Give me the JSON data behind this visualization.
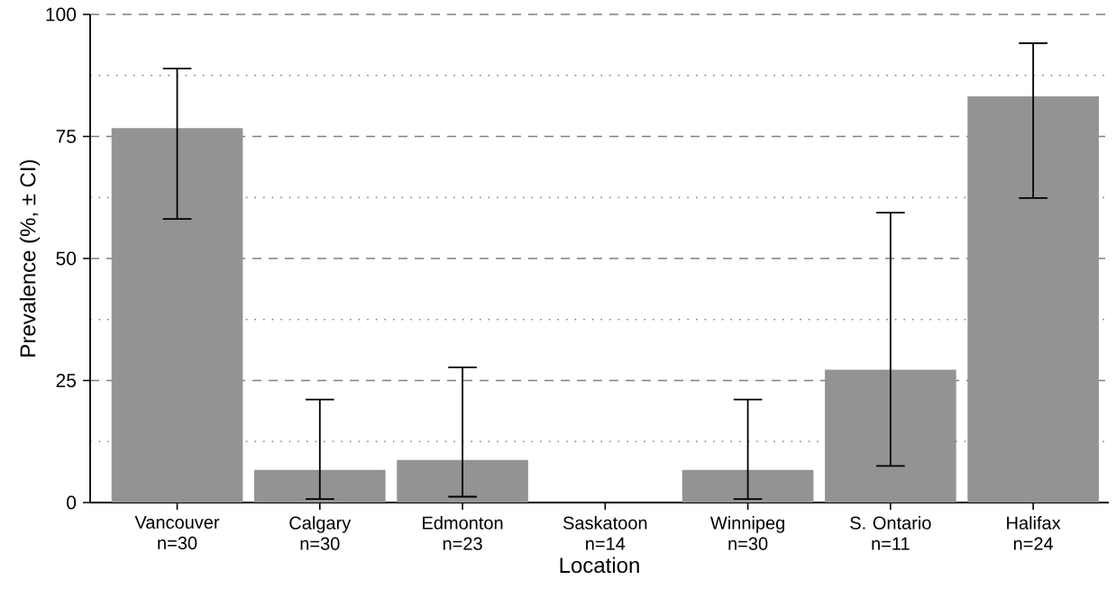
{
  "chart_data": {
    "type": "bar",
    "xlabel": "Location",
    "ylabel": "Prevalence (%, ± CI)",
    "categories": [
      "Vancouver n=30",
      "Calgary n=30",
      "Edmonton n=23",
      "Saskatoon n=14",
      "Winnipeg n=30",
      "S. Ontario n=11",
      "Halifax n=24"
    ],
    "values": [
      76.7,
      6.7,
      8.7,
      0,
      6.7,
      27.2,
      83.2
    ],
    "errors": [
      [
        58.1,
        88.9
      ],
      [
        0.7,
        21.1
      ],
      [
        1.2,
        27.7
      ],
      null,
      [
        0.7,
        21.1
      ],
      [
        7.5,
        59.4
      ],
      [
        62.4,
        94.1
      ]
    ],
    "color": "#939393",
    "ylim": [
      0,
      100
    ],
    "yticks": [
      0,
      25,
      50,
      75,
      100
    ],
    "grid": "y"
  }
}
